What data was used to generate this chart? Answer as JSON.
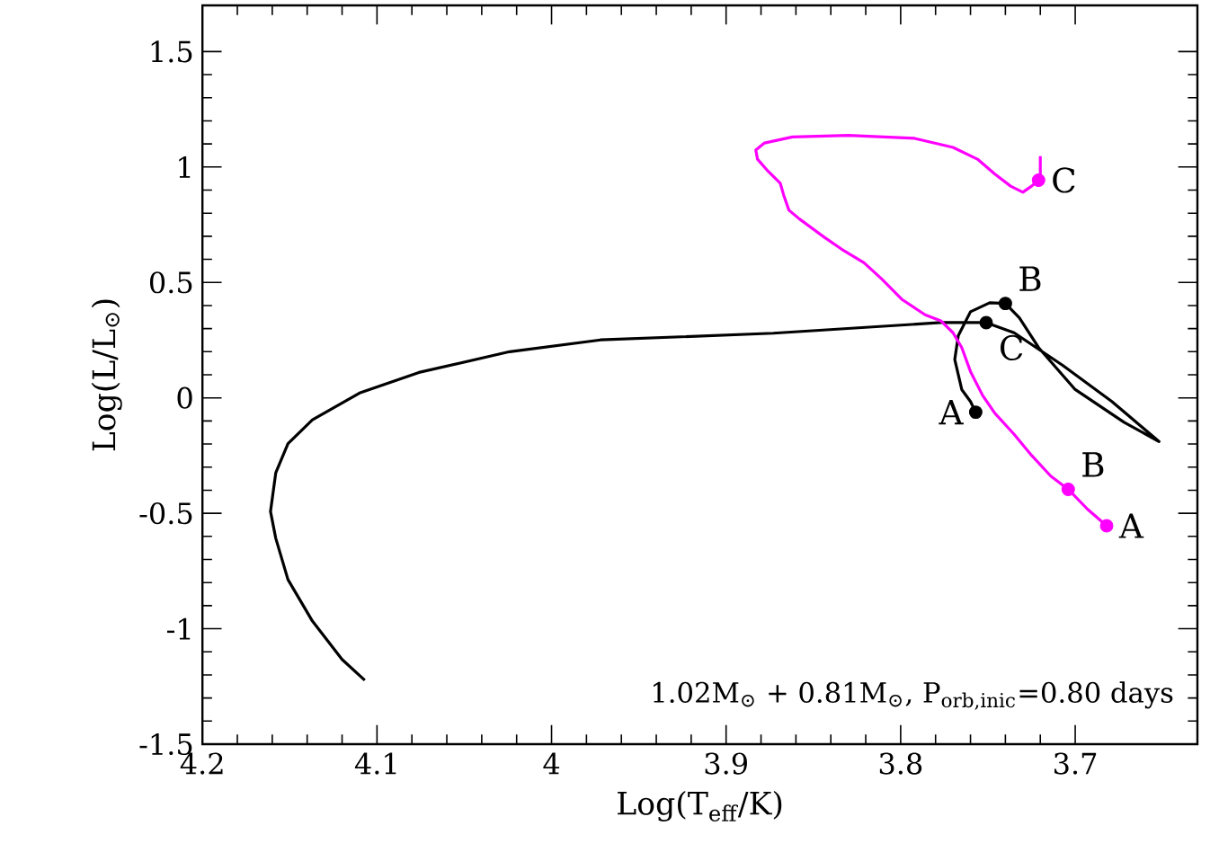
{
  "chart_data": {
    "type": "line",
    "xlabel": "Log(T$_{eff}$/K)",
    "ylabel": "Log(L/L$_{⊙}$)",
    "xlim": [
      4.2,
      3.63
    ],
    "ylim": [
      -1.5,
      1.7
    ],
    "xticks": [
      4.2,
      4.1,
      4,
      3.9,
      3.8,
      3.7
    ],
    "yticks": [
      -1.5,
      -1,
      -0.5,
      0,
      0.5,
      1,
      1.5
    ],
    "line_style": "solid",
    "series": [
      {
        "color": "#000000",
        "x": [
          4.107,
          4.12,
          4.137,
          4.151,
          4.158,
          4.161,
          4.158,
          4.151,
          4.137,
          4.11,
          4.076,
          4.024,
          3.972,
          3.873,
          3.777,
          3.751,
          3.735,
          3.707,
          3.679,
          3.652,
          3.672,
          3.7,
          3.721,
          3.732,
          3.74,
          3.749,
          3.76,
          3.767,
          3.769,
          3.765,
          3.76,
          3.757
        ],
        "values": [
          -1.223,
          -1.133,
          -0.967,
          -0.787,
          -0.608,
          -0.492,
          -0.325,
          -0.198,
          -0.095,
          0.021,
          0.11,
          0.2,
          0.251,
          0.28,
          0.326,
          0.326,
          0.282,
          0.14,
          -0.016,
          -0.189,
          -0.106,
          0.036,
          0.218,
          0.347,
          0.409,
          0.412,
          0.373,
          0.269,
          0.166,
          0.036,
          -0.016,
          -0.062
        ]
      },
      {
        "color": "#ff00ff",
        "x": [
          3.72,
          3.72,
          3.721,
          3.725,
          3.73,
          3.737,
          3.746,
          3.756,
          3.77,
          3.792,
          3.83,
          3.862,
          3.878,
          3.883,
          3.882,
          3.876,
          3.869,
          3.867,
          3.864,
          3.858,
          3.851,
          3.844,
          3.834,
          3.821,
          3.811,
          3.799,
          3.786,
          3.777,
          3.77,
          3.765,
          3.76,
          3.753,
          3.746,
          3.735,
          3.725,
          3.714,
          3.704,
          3.693,
          3.682
        ],
        "values": [
          1.047,
          0.969,
          0.943,
          0.917,
          0.891,
          0.917,
          0.969,
          1.034,
          1.085,
          1.124,
          1.137,
          1.13,
          1.104,
          1.073,
          1.034,
          0.982,
          0.93,
          0.878,
          0.813,
          0.775,
          0.736,
          0.697,
          0.645,
          0.585,
          0.516,
          0.425,
          0.36,
          0.334,
          0.282,
          0.218,
          0.114,
          0.01,
          -0.067,
          -0.158,
          -0.249,
          -0.339,
          -0.396,
          -0.482,
          -0.554
        ]
      },
      {
        "type": "scatter",
        "marker": "circle",
        "color": "#000000",
        "x": [
          3.757,
          3.74,
          3.751
        ],
        "values": [
          -0.062,
          0.409,
          0.326
        ]
      },
      {
        "type": "scatter",
        "marker": "circle",
        "color": "#ff00ff",
        "x": [
          3.682,
          3.704,
          3.721
        ],
        "values": [
          -0.554,
          -0.396,
          0.943
        ]
      }
    ],
    "annotations": [
      "1.02M$_{⊙}$ + 0.81M$_{⊙}$, P$_{orb,inic}$=0.80 days",
      {
        "text": "C",
        "x": 3.721,
        "y": 0.943
      },
      {
        "text": "B",
        "x": 3.74,
        "y": 0.409
      },
      {
        "text": "C",
        "x": 3.751,
        "y": 0.326
      },
      {
        "text": "A",
        "x": 3.757,
        "y": -0.062
      },
      {
        "text": "B",
        "x": 3.704,
        "y": -0.396
      },
      {
        "text": "A",
        "x": 3.682,
        "y": -0.554
      }
    ]
  }
}
